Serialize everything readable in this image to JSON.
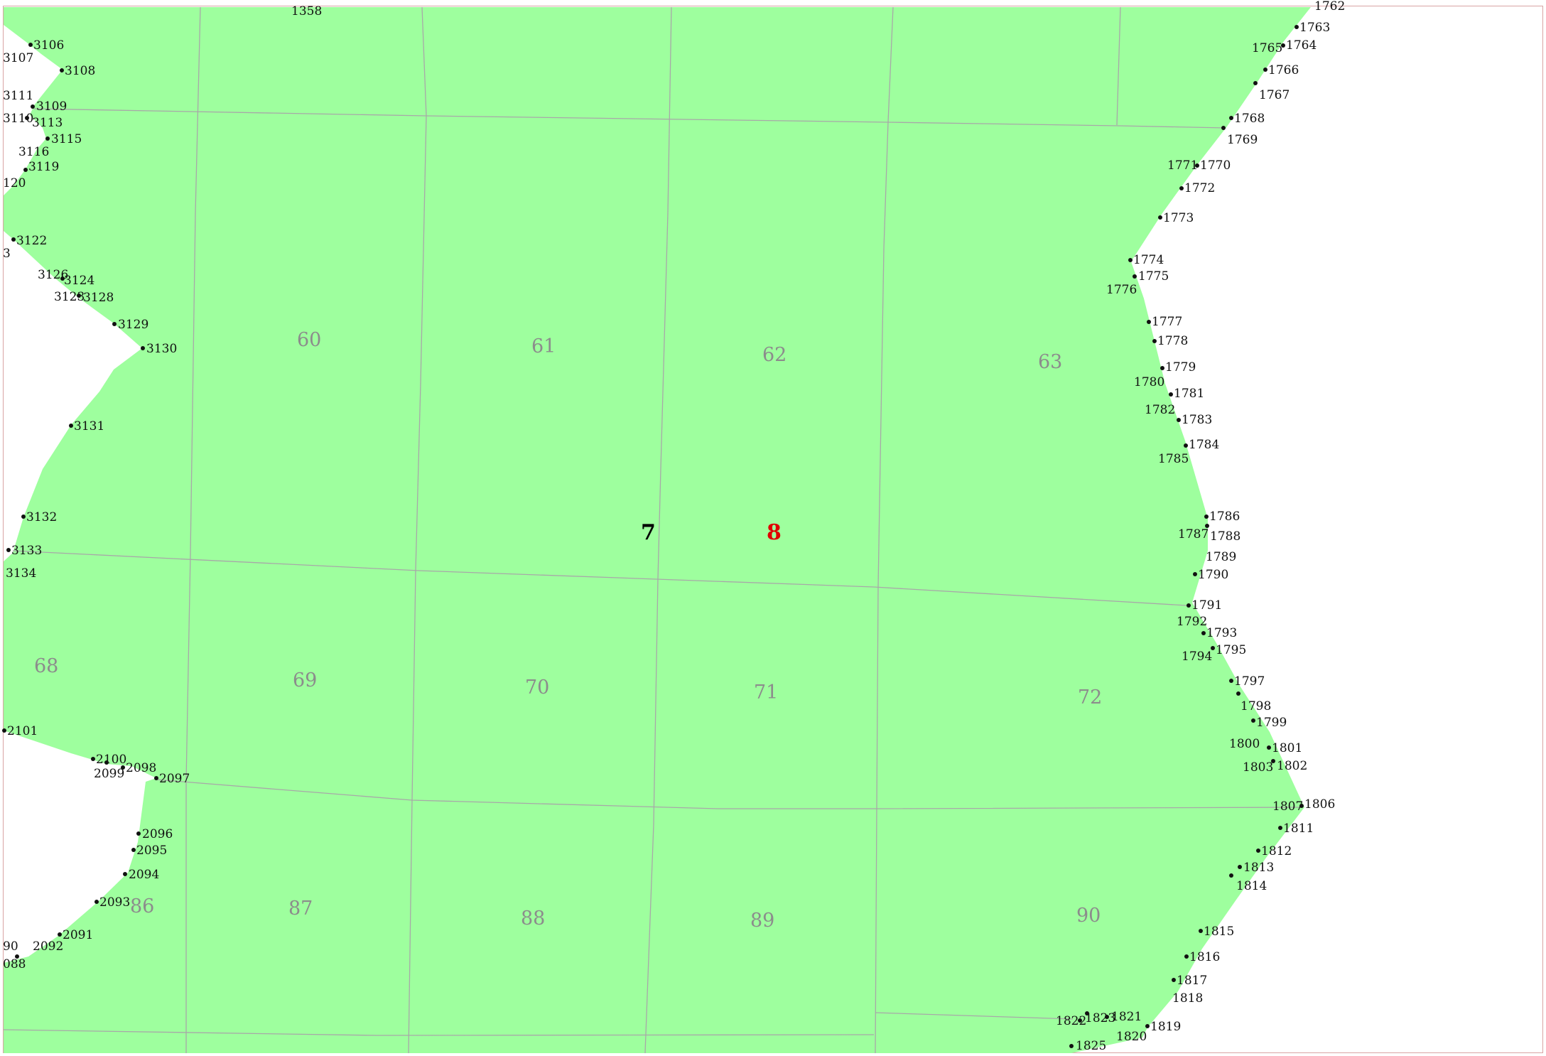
{
  "colors": {
    "land_fill": "#9eff9e",
    "boundary": "#a8a8a8",
    "parcel_label": "#8c8c8c",
    "point_label": "#111111",
    "block_7": "#000000",
    "block_8": "#e00000"
  },
  "blocks": [
    {
      "id": "block-7",
      "label": "7",
      "color": "#000000"
    },
    {
      "id": "block-8",
      "label": "8",
      "color": "#e00000"
    }
  ],
  "parcels": [
    "60",
    "61",
    "62",
    "63",
    "68",
    "69",
    "70",
    "71",
    "72",
    "86",
    "87",
    "88",
    "89",
    "90"
  ],
  "top_label": "1358",
  "left_points": [
    "3106",
    "3107",
    "3108",
    "3111",
    "3109",
    "3110",
    "3113",
    "3115",
    "3116",
    "3119",
    "120",
    "3122",
    "3",
    "3126",
    "3124",
    "3123",
    "3128",
    "3129",
    "3130",
    "3131",
    "3132",
    "3133",
    "3134",
    "2101",
    "2100",
    "2099",
    "2098",
    "2097",
    "2096",
    "2095",
    "2094",
    "2093",
    "2091",
    "2092",
    "90",
    "088"
  ],
  "right_points": [
    "1762",
    "1763",
    "1765",
    "1764",
    "1766",
    "1767",
    "1768",
    "1769",
    "1771",
    "1770",
    "1772",
    "1773",
    "1774",
    "1775",
    "1776",
    "1777",
    "1778",
    "1779",
    "1780",
    "1781",
    "1782",
    "1783",
    "1784",
    "1785",
    "1786",
    "1787",
    "1788",
    "1789",
    "1790",
    "1791",
    "1792",
    "1793",
    "1794",
    "1795",
    "1797",
    "1798",
    "1799",
    "1800",
    "1801",
    "1803",
    "1802",
    "1807",
    "1806",
    "1811",
    "1812",
    "1813",
    "1814",
    "1815",
    "1816",
    "1817",
    "1818",
    "1822",
    "1823",
    "1821",
    "1820",
    "1819",
    "1825"
  ]
}
